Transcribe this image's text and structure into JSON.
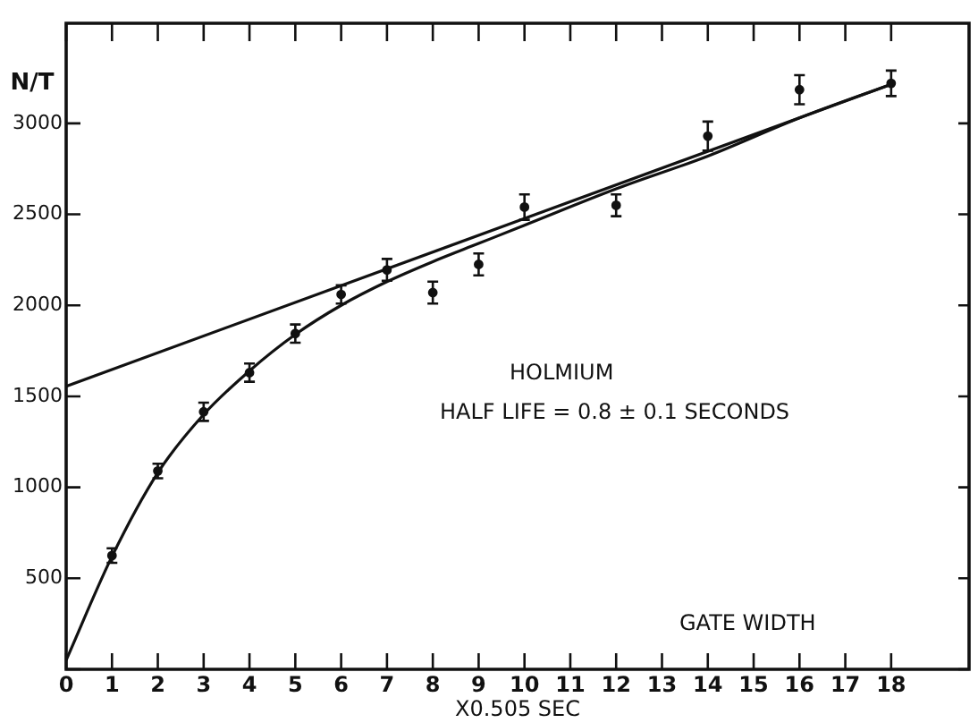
{
  "chart_data": {
    "type": "scatter",
    "ylabel": "N/T",
    "xlabel": "X0.505 SEC",
    "annotations": [
      "HOLMIUM",
      "HALF LIFE = 0.8 ± 0.1 SECONDS",
      "GATE WIDTH"
    ],
    "xlim": [
      0,
      19.7
    ],
    "xticks": [
      0,
      1,
      2,
      3,
      4,
      5,
      6,
      7,
      8,
      9,
      10,
      11,
      12,
      13,
      14,
      15,
      16,
      17,
      18
    ],
    "ylim": [
      0,
      3550
    ],
    "yticks": [
      {
        "value": 0,
        "label": null
      },
      500,
      1000,
      1500,
      2000,
      2500,
      3000
    ],
    "grid": false,
    "series": [
      {
        "marker": "circle",
        "color": "#111111",
        "x": [
          1,
          2,
          3,
          4,
          5,
          6,
          7,
          8,
          9,
          10,
          12,
          14,
          16,
          18
        ],
        "values": [
          625,
          1090,
          1415,
          1630,
          1845,
          2060,
          2195,
          2070,
          2225,
          2540,
          2550,
          2930,
          3185,
          3220
        ],
        "errors": [
          40,
          40,
          50,
          50,
          50,
          50,
          60,
          60,
          60,
          70,
          60,
          80,
          80,
          70
        ]
      },
      {
        "type": "line",
        "marker": "none",
        "color": "#111111",
        "x": [
          0,
          18
        ],
        "values": [
          1555,
          3215
        ]
      },
      {
        "type": "line",
        "marker": "none",
        "color": "#111111",
        "x": [
          0,
          1,
          2,
          3,
          4,
          5,
          6,
          7,
          8,
          9,
          10,
          12,
          14,
          16,
          18
        ],
        "values": [
          50,
          620,
          1080,
          1400,
          1640,
          1840,
          2000,
          2130,
          2240,
          2340,
          2440,
          2640,
          2820,
          3030,
          3215
        ]
      }
    ]
  }
}
